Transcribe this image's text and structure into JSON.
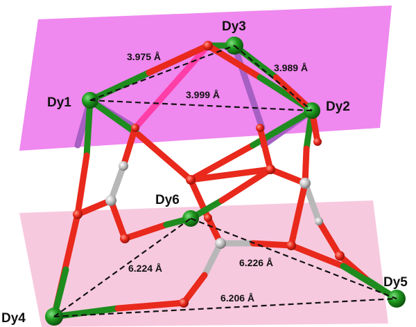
{
  "colors": {
    "upper_plane": "#ee82ee",
    "lower_plane": "#f7c6dc",
    "dysprosium": "#1e8c1e",
    "oxygen": "#e8291c",
    "carbon": "#b8b8b8",
    "bond_shade": "#9b5bb0",
    "distance_line": "#111111"
  },
  "atoms": {
    "dy1": "Dy1",
    "dy2": "Dy2",
    "dy3": "Dy3",
    "dy4": "Dy4",
    "dy5": "Dy5",
    "dy6": "Dy6"
  },
  "distances": {
    "dy1_dy3": "3.975 Å",
    "dy2_dy3": "3.989 Å",
    "dy1_dy2": "3.999 Å",
    "dy4_dy6": "6.224 Å",
    "dy5_dy6": "6.226 Å",
    "dy4_dy5": "6.206 Å"
  }
}
